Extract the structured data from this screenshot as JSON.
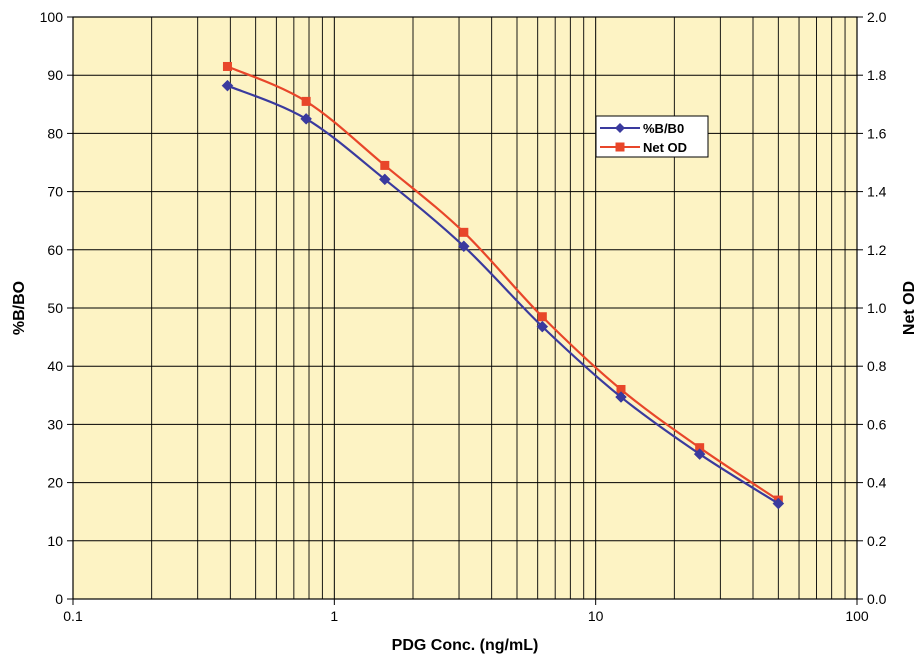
{
  "chart_data": {
    "type": "line",
    "title": "",
    "xlabel": "PDG Conc. (ng/mL)",
    "ylabel": "%B/BO",
    "y2label": "Net OD",
    "xscale": "log",
    "xlim": [
      0.1,
      100
    ],
    "ylim": [
      0,
      100
    ],
    "y2lim": [
      0,
      2.0
    ],
    "x_ticks": [
      0.1,
      1,
      10,
      100
    ],
    "x_tick_labels": [
      "0.1",
      "1",
      "10",
      "100"
    ],
    "y_ticks": [
      0,
      10,
      20,
      30,
      40,
      50,
      60,
      70,
      80,
      90,
      100
    ],
    "y_tick_labels": [
      "0",
      "10",
      "20",
      "30",
      "40",
      "50",
      "60",
      "70",
      "80",
      "90",
      "100"
    ],
    "y2_ticks": [
      0,
      0.2,
      0.4,
      0.6,
      0.8,
      1.0,
      1.2,
      1.4,
      1.6,
      1.8,
      2.0
    ],
    "y2_tick_labels": [
      "0.0",
      "0.2",
      "0.4",
      "0.6",
      "0.8",
      "1.0",
      "1.2",
      "1.4",
      "1.6",
      "1.8",
      "2.0"
    ],
    "grid": true,
    "legend_position": "upper-right",
    "plot_background": "#fdf3c4",
    "series": [
      {
        "name": "%B/B0",
        "axis": "left",
        "color": "#3a3a9e",
        "marker": "diamond",
        "x": [
          0.39,
          0.78,
          1.56,
          3.13,
          6.25,
          12.5,
          25,
          50
        ],
        "y": [
          88.2,
          82.5,
          72.1,
          60.6,
          46.8,
          34.7,
          24.9,
          16.4
        ]
      },
      {
        "name": "Net OD",
        "axis": "right",
        "color": "#e8462a",
        "marker": "square",
        "x": [
          0.39,
          0.78,
          1.56,
          3.13,
          6.25,
          12.5,
          25,
          50
        ],
        "y": [
          1.83,
          1.71,
          1.49,
          1.26,
          0.97,
          0.72,
          0.52,
          0.34
        ]
      }
    ]
  }
}
